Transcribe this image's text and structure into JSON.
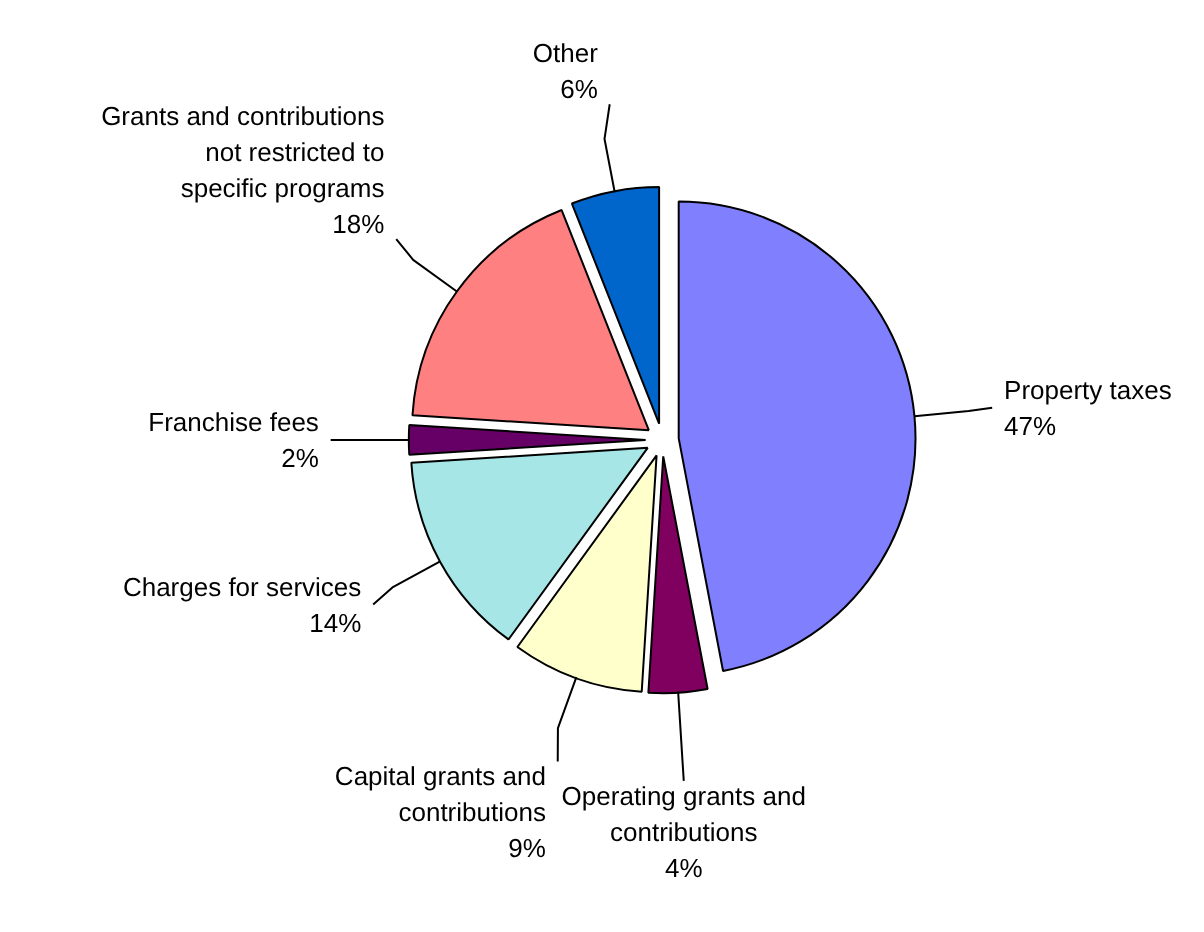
{
  "chart_data": {
    "type": "pie",
    "categories": [
      "Property taxes",
      "Operating grants and contributions",
      "Capital grants and contributions",
      "Charges for services",
      "Franchise fees",
      "Grants and contributions not restricted to specific programs",
      "Other"
    ],
    "values": [
      47,
      4,
      9,
      14,
      2,
      18,
      6
    ],
    "value_labels": [
      "47%",
      "4%",
      "9%",
      "14%",
      "2%",
      "18%",
      "6%"
    ],
    "colors": [
      "#8080ff",
      "#800060",
      "#ffffcc",
      "#a6e6e6",
      "#660066",
      "#ff8080",
      "#0066cc"
    ]
  }
}
